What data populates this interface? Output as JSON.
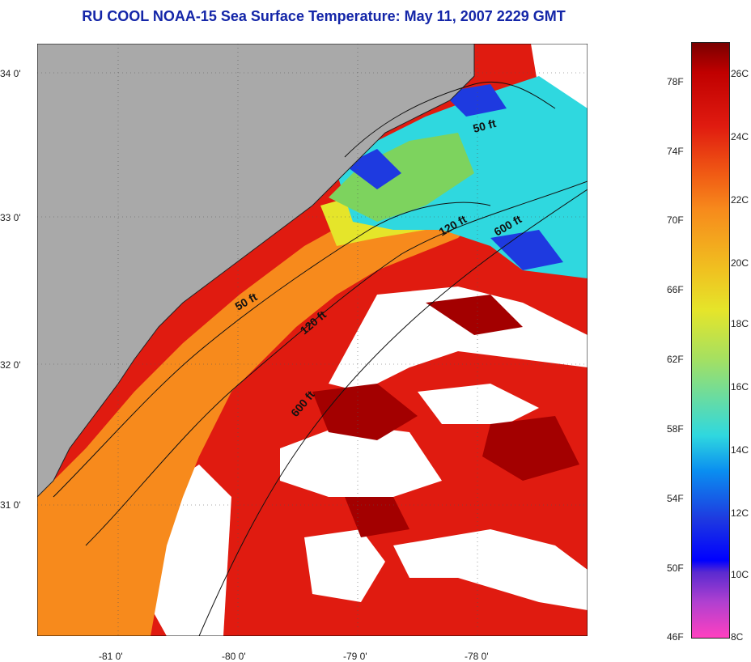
{
  "title": "RU COOL  NOAA-15  Sea Surface Temperature:  May 11, 2007 2229 GMT",
  "map": {
    "lon_ticks": [
      "-81 0'",
      "-80 0'",
      "-79 0'",
      "-78 0'"
    ],
    "lat_ticks": [
      "34 0'",
      "33 0'",
      "32 0'",
      "31 0'"
    ],
    "contours": [
      {
        "label": "50 ft"
      },
      {
        "label": "120 ft"
      },
      {
        "label": "600 ft"
      },
      {
        "label": "50 ft"
      },
      {
        "label": "120 ft"
      },
      {
        "label": "600 ft"
      }
    ],
    "colors": {
      "land": "#a9a9a9",
      "cloud": "#ffffff",
      "warm_dark_red": "#a30000",
      "red": "#e01b10",
      "orange": "#f78a1c",
      "yellow": "#e5e52a",
      "green": "#7dd35e",
      "cyan": "#2fd8df",
      "blue": "#1e3ae0"
    }
  },
  "colorbar": {
    "fahrenheit": [
      "78F",
      "74F",
      "70F",
      "66F",
      "62F",
      "58F",
      "54F",
      "50F",
      "46F"
    ],
    "celsius": [
      "26C",
      "24C",
      "22C",
      "20C",
      "18C",
      "16C",
      "14C",
      "12C",
      "10C",
      "8C"
    ]
  }
}
